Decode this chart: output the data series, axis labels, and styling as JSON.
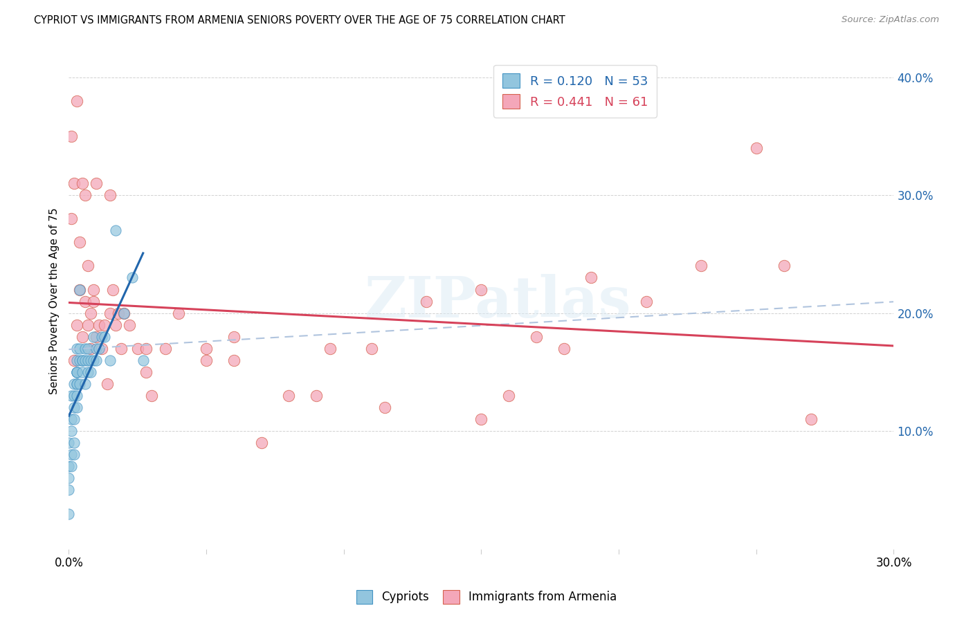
{
  "title": "CYPRIOT VS IMMIGRANTS FROM ARMENIA SENIORS POVERTY OVER THE AGE OF 75 CORRELATION CHART",
  "source": "Source: ZipAtlas.com",
  "ylabel": "Seniors Poverty Over the Age of 75",
  "xlim": [
    0.0,
    0.3
  ],
  "ylim": [
    0.0,
    0.42
  ],
  "color_blue": "#92c5de",
  "color_pink": "#f4a7b9",
  "color_edge_blue": "#4393c3",
  "color_edge_pink": "#d6604d",
  "color_line_blue": "#2166ac",
  "color_line_pink": "#d6425a",
  "color_dash": "#b0c4de",
  "watermark": "ZIPatlas",
  "cypriot_x": [
    0.0,
    0.0,
    0.0,
    0.0,
    0.0,
    0.001,
    0.001,
    0.001,
    0.001,
    0.001,
    0.002,
    0.002,
    0.002,
    0.002,
    0.002,
    0.002,
    0.003,
    0.003,
    0.003,
    0.003,
    0.003,
    0.003,
    0.003,
    0.003,
    0.003,
    0.003,
    0.004,
    0.004,
    0.004,
    0.004,
    0.005,
    0.005,
    0.005,
    0.006,
    0.006,
    0.006,
    0.007,
    0.007,
    0.007,
    0.008,
    0.008,
    0.009,
    0.009,
    0.01,
    0.01,
    0.011,
    0.012,
    0.013,
    0.015,
    0.017,
    0.02,
    0.023,
    0.027
  ],
  "cypriot_y": [
    0.03,
    0.05,
    0.06,
    0.07,
    0.09,
    0.07,
    0.08,
    0.1,
    0.11,
    0.13,
    0.08,
    0.09,
    0.11,
    0.12,
    0.13,
    0.14,
    0.12,
    0.13,
    0.14,
    0.15,
    0.15,
    0.14,
    0.15,
    0.15,
    0.16,
    0.17,
    0.14,
    0.16,
    0.17,
    0.22,
    0.15,
    0.16,
    0.16,
    0.14,
    0.16,
    0.17,
    0.15,
    0.16,
    0.17,
    0.15,
    0.16,
    0.16,
    0.18,
    0.16,
    0.17,
    0.17,
    0.18,
    0.18,
    0.16,
    0.27,
    0.2,
    0.23,
    0.16
  ],
  "armenia_x": [
    0.001,
    0.001,
    0.002,
    0.002,
    0.003,
    0.003,
    0.004,
    0.004,
    0.005,
    0.005,
    0.006,
    0.006,
    0.007,
    0.007,
    0.008,
    0.008,
    0.009,
    0.009,
    0.01,
    0.01,
    0.011,
    0.012,
    0.013,
    0.014,
    0.015,
    0.015,
    0.016,
    0.017,
    0.018,
    0.019,
    0.02,
    0.022,
    0.025,
    0.028,
    0.03,
    0.035,
    0.04,
    0.05,
    0.06,
    0.07,
    0.09,
    0.11,
    0.13,
    0.15,
    0.17,
    0.19,
    0.21,
    0.23,
    0.25,
    0.27,
    0.028,
    0.05,
    0.06,
    0.08,
    0.095,
    0.115,
    0.15,
    0.16,
    0.18,
    0.26
  ],
  "armenia_y": [
    0.35,
    0.28,
    0.31,
    0.16,
    0.38,
    0.19,
    0.22,
    0.26,
    0.31,
    0.18,
    0.3,
    0.21,
    0.24,
    0.19,
    0.2,
    0.17,
    0.21,
    0.22,
    0.31,
    0.18,
    0.19,
    0.17,
    0.19,
    0.14,
    0.3,
    0.2,
    0.22,
    0.19,
    0.2,
    0.17,
    0.2,
    0.19,
    0.17,
    0.15,
    0.13,
    0.17,
    0.2,
    0.17,
    0.16,
    0.09,
    0.13,
    0.17,
    0.21,
    0.22,
    0.18,
    0.23,
    0.21,
    0.24,
    0.34,
    0.11,
    0.17,
    0.16,
    0.18,
    0.13,
    0.17,
    0.12,
    0.11,
    0.13,
    0.17,
    0.24
  ]
}
